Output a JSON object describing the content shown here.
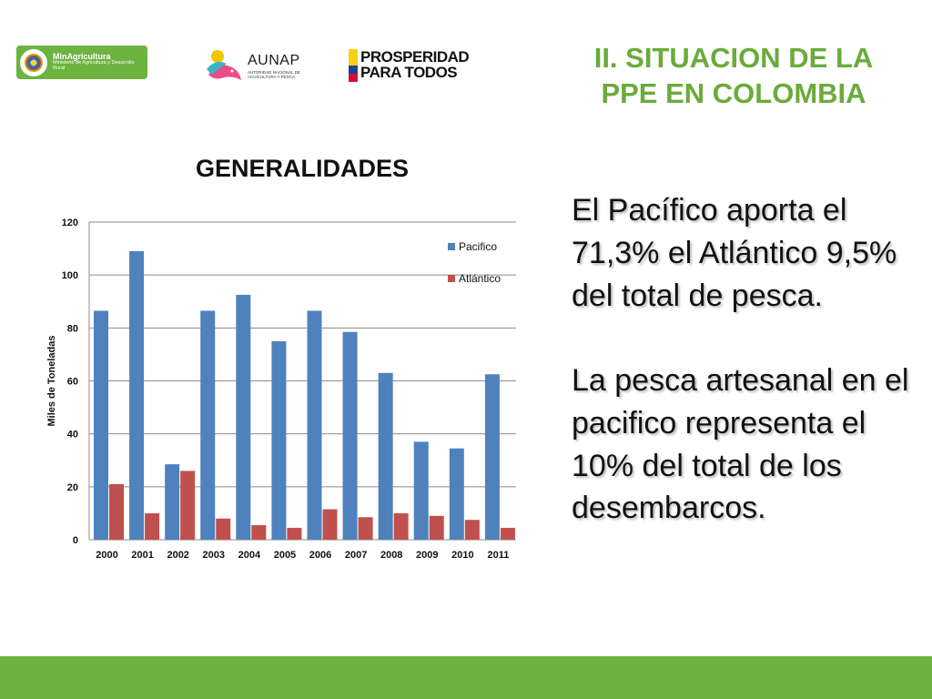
{
  "header": {
    "logo_min": {
      "title": "MinAgricultura",
      "subtitle": "Ministerio de Agricultura y Desarrollo Rural"
    },
    "logo_aunap": {
      "name": "AUNAP",
      "subtitle": "AUTORIDAD NACIONAL DE ACUICULTURA Y PESCA"
    },
    "logo_prosperidad": {
      "line1": "PROSPERIDAD",
      "line2": "PARA TODOS"
    }
  },
  "slide_title": {
    "line1": "II. SITUACION DE LA",
    "line2": "PPE EN COLOMBIA"
  },
  "chart_heading": "GENERALIDADES",
  "body": {
    "paragraph1": "El Pacífico aporta el 71,3% el Atlántico 9,5% del total de pesca.",
    "paragraph2": "La pesca artesanal en el pacifico representa el 10% del total de los desembarcos."
  },
  "colors": {
    "accent_green": "#6db33f",
    "title_green": "#6aab3a",
    "pacifico": "#4f81bd",
    "atlantico": "#c0504d"
  },
  "chart_data": {
    "type": "bar",
    "title": "GENERALIDADES",
    "xlabel": "",
    "ylabel": "Miles de Toneladas",
    "ylim": [
      0,
      120
    ],
    "yticks": [
      0,
      20,
      40,
      60,
      80,
      100,
      120
    ],
    "grid": true,
    "legend_position": "top-right",
    "categories": [
      "2000",
      "2001",
      "2002",
      "2003",
      "2004",
      "2005",
      "2006",
      "2007",
      "2008",
      "2009",
      "2010",
      "2011"
    ],
    "series": [
      {
        "name": "Pacifico",
        "color": "#4f81bd",
        "values": [
          86.5,
          109,
          28.5,
          86.5,
          92.5,
          75,
          86.5,
          78.5,
          63,
          37,
          34.5,
          62.5
        ]
      },
      {
        "name": "Atlántico",
        "color": "#c0504d",
        "values": [
          21,
          10,
          26,
          8,
          5.5,
          4.5,
          11.5,
          8.5,
          10,
          9,
          7.5,
          4.5
        ]
      }
    ]
  }
}
